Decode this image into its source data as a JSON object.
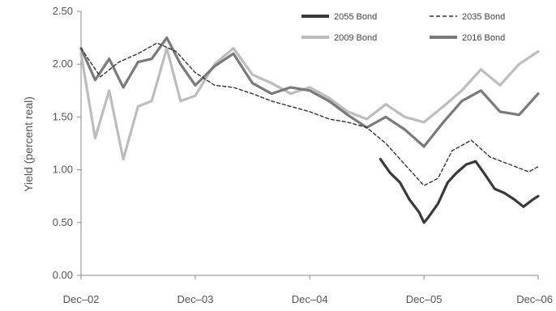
{
  "chart_data": {
    "type": "line",
    "title": "",
    "xlabel": "",
    "ylabel": "Yield (percent real)",
    "ylim": [
      0,
      2.5
    ],
    "yticks": [
      "0.00",
      "0.50",
      "1.00",
      "1.50",
      "2.00",
      "2.50"
    ],
    "ytick_values": [
      0,
      0.5,
      1.0,
      1.5,
      2.0,
      2.5
    ],
    "xlim": [
      "2002-12-01",
      "2006-12-01"
    ],
    "xticks": [
      "Dec–02",
      "Dec–03",
      "Dec–04",
      "Dec–05",
      "Dec–06"
    ],
    "xtick_values": [
      "2002-12-01",
      "2003-12-01",
      "2004-12-01",
      "2005-12-01",
      "2006-12-01"
    ],
    "grid": false,
    "legend_position": "top-right",
    "series": [
      {
        "name": "2055 Bond",
        "color": "#3a3a3a",
        "dash": "solid",
        "x": [
          "2005-07-15",
          "2005-08-15",
          "2005-09-15",
          "2005-10-15",
          "2005-11-15",
          "2005-12-01",
          "2005-12-15",
          "2006-01-15",
          "2006-02-15",
          "2006-03-15",
          "2006-04-15",
          "2006-05-15",
          "2006-06-15",
          "2006-07-15",
          "2006-08-15",
          "2006-09-15",
          "2006-10-15",
          "2006-11-15",
          "2006-12-01"
        ],
        "y": [
          1.1,
          0.97,
          0.88,
          0.72,
          0.6,
          0.5,
          0.55,
          0.68,
          0.88,
          0.97,
          1.05,
          1.08,
          0.95,
          0.82,
          0.78,
          0.72,
          0.65,
          0.72,
          0.75
        ]
      },
      {
        "name": "2035 Bond",
        "color": "#333333",
        "dash": "dashed",
        "x": [
          "2002-12-01",
          "2003-02-01",
          "2003-04-01",
          "2003-06-01",
          "2003-08-01",
          "2003-10-01",
          "2003-12-01",
          "2004-02-01",
          "2004-04-01",
          "2004-06-01",
          "2004-08-01",
          "2004-10-01",
          "2004-12-01",
          "2005-02-01",
          "2005-04-01",
          "2005-06-01",
          "2005-08-01",
          "2005-10-01",
          "2005-12-01",
          "2006-01-15",
          "2006-03-01",
          "2006-05-01",
          "2006-07-01",
          "2006-09-01",
          "2006-11-01",
          "2006-12-01"
        ],
        "y": [
          2.15,
          1.88,
          2.02,
          2.1,
          2.2,
          2.12,
          1.92,
          1.8,
          1.78,
          1.72,
          1.65,
          1.6,
          1.55,
          1.48,
          1.45,
          1.4,
          1.25,
          1.05,
          0.85,
          0.92,
          1.18,
          1.28,
          1.12,
          1.05,
          0.98,
          1.03
        ]
      },
      {
        "name": "2009 Bond",
        "color": "#bdbdbd",
        "dash": "solid",
        "x": [
          "2002-12-01",
          "2003-01-15",
          "2003-03-01",
          "2003-04-15",
          "2003-06-01",
          "2003-07-15",
          "2003-09-01",
          "2003-10-15",
          "2003-12-01",
          "2004-02-01",
          "2004-04-01",
          "2004-06-01",
          "2004-08-01",
          "2004-10-01",
          "2004-12-01",
          "2005-02-01",
          "2005-04-01",
          "2005-06-01",
          "2005-08-01",
          "2005-10-01",
          "2005-12-01",
          "2006-02-01",
          "2006-04-01",
          "2006-06-01",
          "2006-08-01",
          "2006-10-01",
          "2006-12-01"
        ],
        "y": [
          2.1,
          1.3,
          1.75,
          1.1,
          1.6,
          1.65,
          2.15,
          1.65,
          1.7,
          2.0,
          2.15,
          1.9,
          1.82,
          1.72,
          1.78,
          1.68,
          1.55,
          1.48,
          1.62,
          1.5,
          1.45,
          1.6,
          1.75,
          1.95,
          1.8,
          2.0,
          2.12
        ]
      },
      {
        "name": "2016 Bond",
        "color": "#7a7a7a",
        "dash": "solid",
        "x": [
          "2002-12-01",
          "2003-01-15",
          "2003-03-01",
          "2003-04-15",
          "2003-06-01",
          "2003-07-15",
          "2003-09-01",
          "2003-10-15",
          "2003-12-01",
          "2004-02-01",
          "2004-04-01",
          "2004-06-01",
          "2004-08-01",
          "2004-10-01",
          "2004-12-01",
          "2005-02-01",
          "2005-04-01",
          "2005-06-01",
          "2005-08-01",
          "2005-10-01",
          "2005-12-01",
          "2006-02-01",
          "2006-04-01",
          "2006-06-01",
          "2006-08-01",
          "2006-10-01",
          "2006-12-01"
        ],
        "y": [
          2.15,
          1.85,
          2.05,
          1.78,
          2.02,
          2.05,
          2.25,
          2.0,
          1.8,
          1.98,
          2.1,
          1.82,
          1.72,
          1.78,
          1.75,
          1.65,
          1.52,
          1.4,
          1.5,
          1.38,
          1.22,
          1.45,
          1.65,
          1.75,
          1.55,
          1.52,
          1.72
        ]
      }
    ]
  }
}
